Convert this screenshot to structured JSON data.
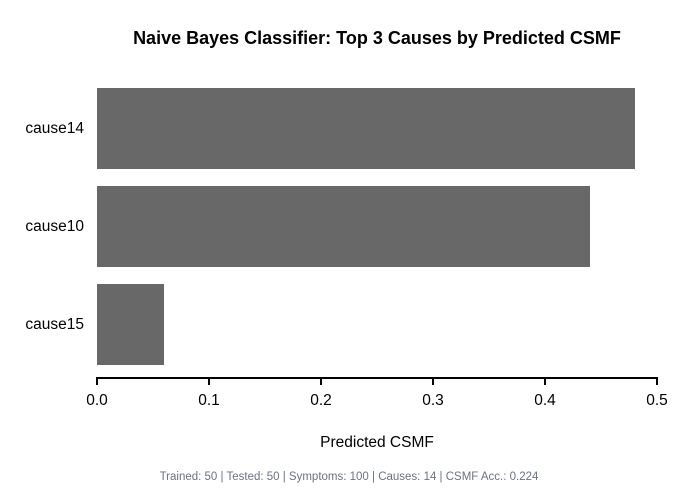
{
  "chart_data": {
    "type": "bar",
    "orientation": "horizontal",
    "title": "Naive Bayes Classifier: Top 3 Causes by Predicted CSMF",
    "categories": [
      "cause14",
      "cause10",
      "cause15"
    ],
    "values": [
      0.48,
      0.44,
      0.06
    ],
    "xlabel": "Predicted CSMF",
    "ylabel": "",
    "xlim": [
      0.0,
      0.5
    ],
    "x_ticks": [
      "0.0",
      "0.1",
      "0.2",
      "0.3",
      "0.4",
      "0.5"
    ],
    "x_tick_values": [
      0.0,
      0.1,
      0.2,
      0.3,
      0.4,
      0.5
    ],
    "grid": false,
    "legend": false,
    "bar_color": "#686868",
    "axis_color": "#000000",
    "title_color": "#000000"
  },
  "footer": {
    "text": "Trained: 50 | Tested: 50 | Symptoms: 100 | Causes: 14 | CSMF Acc.: 0.224",
    "color": "#6b7280"
  }
}
